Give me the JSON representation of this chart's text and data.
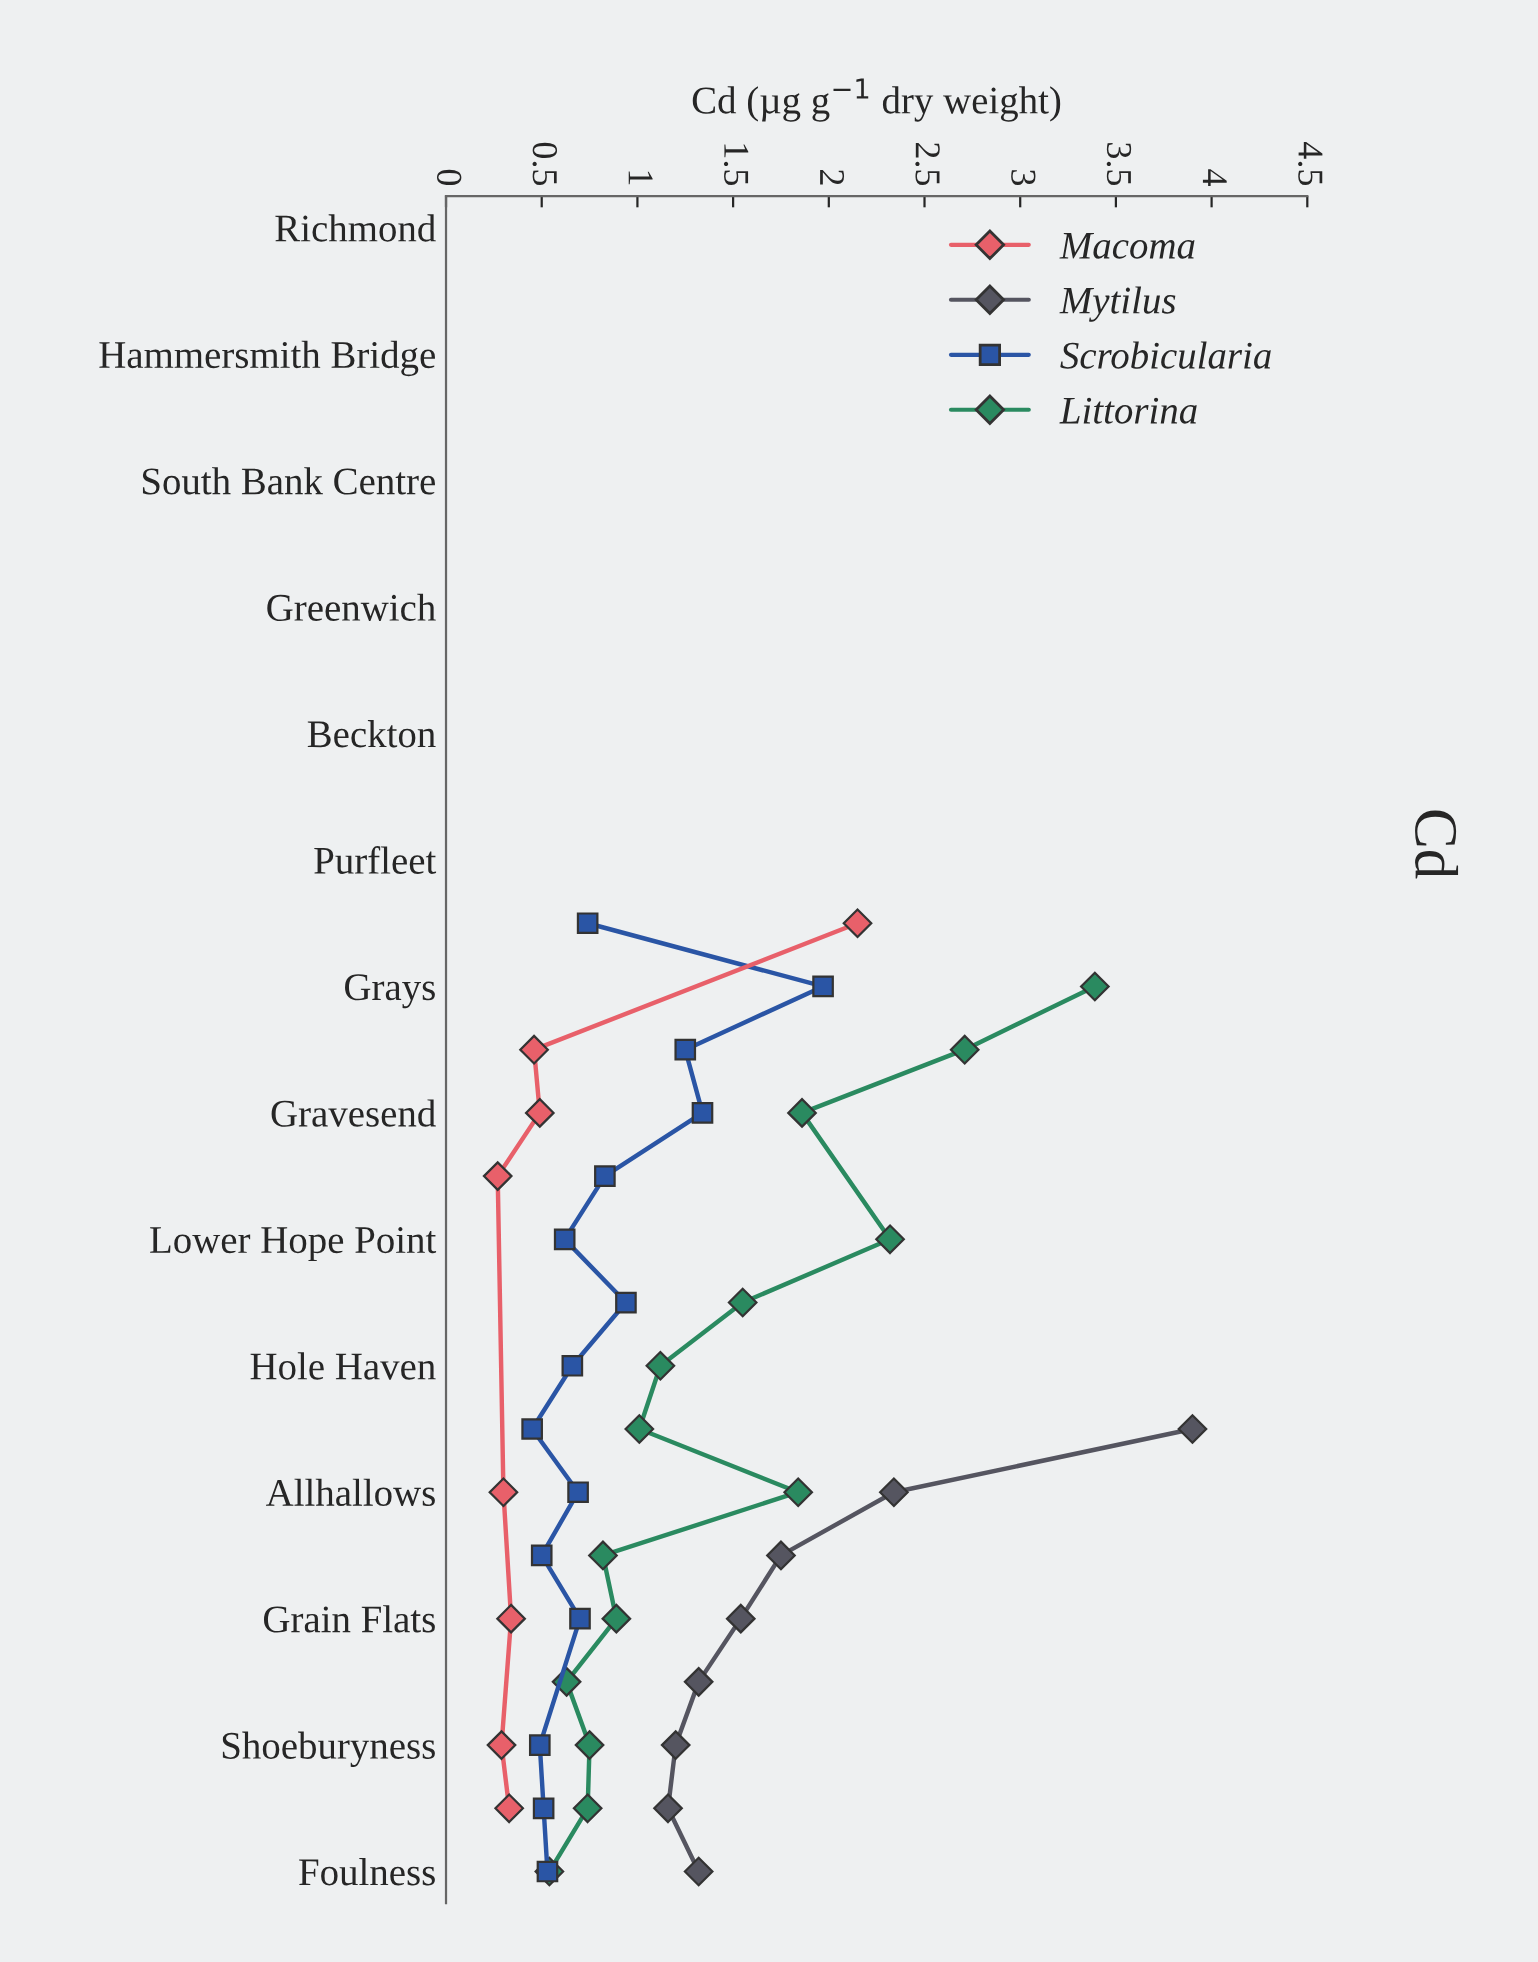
{
  "chart_data": {
    "type": "line",
    "orientation": "horizontal",
    "title": "Cd",
    "xlabel": "Cd (µg g$^{−1}$ dry weight)",
    "categories": [
      "Richmond",
      null,
      "Hammersmith Bridge",
      null,
      "South Bank Centre",
      null,
      "Greenwich",
      null,
      "Beckton",
      null,
      "Purfleet",
      null,
      "Grays",
      null,
      "Gravesend",
      null,
      "Lower Hope Point",
      null,
      "Hole Haven",
      null,
      "Allhallows",
      null,
      "Grain Flats",
      null,
      "Shoeburyness",
      null,
      "Foulness"
    ],
    "xlim": [
      0,
      4.5
    ],
    "xticks": [
      0,
      0.5,
      1,
      1.5,
      2,
      2.5,
      3,
      3.5,
      4,
      4.5
    ],
    "grid": false,
    "legend": "top right",
    "series": [
      {
        "name": "Macoma",
        "color": "#e8606a",
        "marker": "diamond",
        "values": [
          null,
          null,
          null,
          null,
          null,
          null,
          null,
          null,
          null,
          null,
          null,
          2.15,
          null,
          0.46,
          0.49,
          0.27,
          null,
          null,
          null,
          null,
          0.3,
          null,
          0.34,
          null,
          0.29,
          0.33,
          null
        ]
      },
      {
        "name": "Mytilus",
        "color": "#555560",
        "marker": "diamond",
        "values": [
          null,
          null,
          null,
          null,
          null,
          null,
          null,
          null,
          null,
          null,
          null,
          null,
          null,
          null,
          null,
          null,
          null,
          null,
          null,
          3.9,
          2.34,
          1.75,
          1.54,
          1.32,
          1.2,
          1.16,
          1.32
        ]
      },
      {
        "name": "Scrobicularia",
        "color": "#2a55a5",
        "marker": "square",
        "values": [
          null,
          null,
          null,
          null,
          null,
          null,
          null,
          null,
          null,
          null,
          null,
          0.74,
          1.97,
          1.25,
          1.34,
          0.83,
          0.62,
          0.94,
          0.66,
          0.45,
          0.69,
          0.5,
          0.7,
          null,
          0.49,
          0.51,
          0.53
        ]
      },
      {
        "name": "Littorina",
        "color": "#2a8a60",
        "marker": "diamond",
        "values": [
          null,
          null,
          null,
          null,
          null,
          null,
          null,
          null,
          null,
          null,
          null,
          null,
          3.39,
          2.71,
          1.86,
          null,
          2.32,
          1.55,
          1.12,
          1.01,
          1.84,
          0.82,
          0.89,
          0.63,
          0.75,
          0.74,
          0.54
        ]
      }
    ]
  }
}
